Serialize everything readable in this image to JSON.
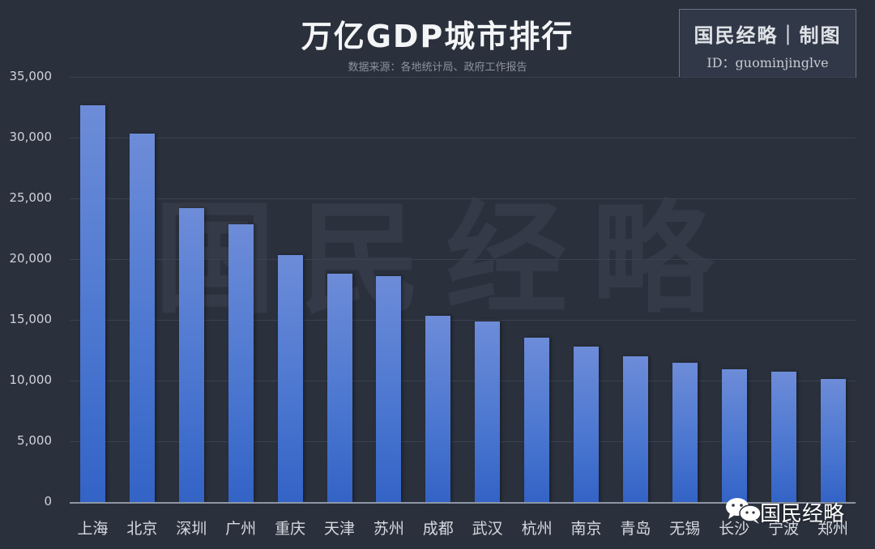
{
  "header": {
    "title": "万亿GDP城市排行",
    "subtitle": "数据来源：各地统计局、政府工作报告"
  },
  "brand": {
    "line1": "国民经略｜制图",
    "line2": "ID：guominjinglve"
  },
  "watermark": "国民经略",
  "footer_logo": {
    "icon": "wechat-icon",
    "label": "国民经略"
  },
  "colors": {
    "background": "#2a303c",
    "bar_top": "#6d8cd8",
    "bar_bottom": "#3363c6",
    "gridline": "#3b4250"
  },
  "chart_data": {
    "type": "bar",
    "title": "万亿GDP城市排行",
    "subtitle": "数据来源：各地统计局、政府工作报告",
    "xlabel": "",
    "ylabel": "",
    "ylim": [
      0,
      35000
    ],
    "yticks": [
      "0",
      "5,000",
      "10,000",
      "15,000",
      "20,000",
      "25,000",
      "30,000",
      "35,000"
    ],
    "grid": true,
    "legend": null,
    "categories": [
      "上海",
      "北京",
      "深圳",
      "广州",
      "重庆",
      "天津",
      "苏州",
      "成都",
      "武汉",
      "杭州",
      "南京",
      "青岛",
      "无锡",
      "长沙",
      "宁波",
      "郑州"
    ],
    "values": [
      32680,
      30320,
      24222,
      22859,
      20363,
      18810,
      18597,
      15343,
      14847,
      13509,
      12820,
      12001,
      11439,
      10936,
      10746,
      10143
    ]
  }
}
